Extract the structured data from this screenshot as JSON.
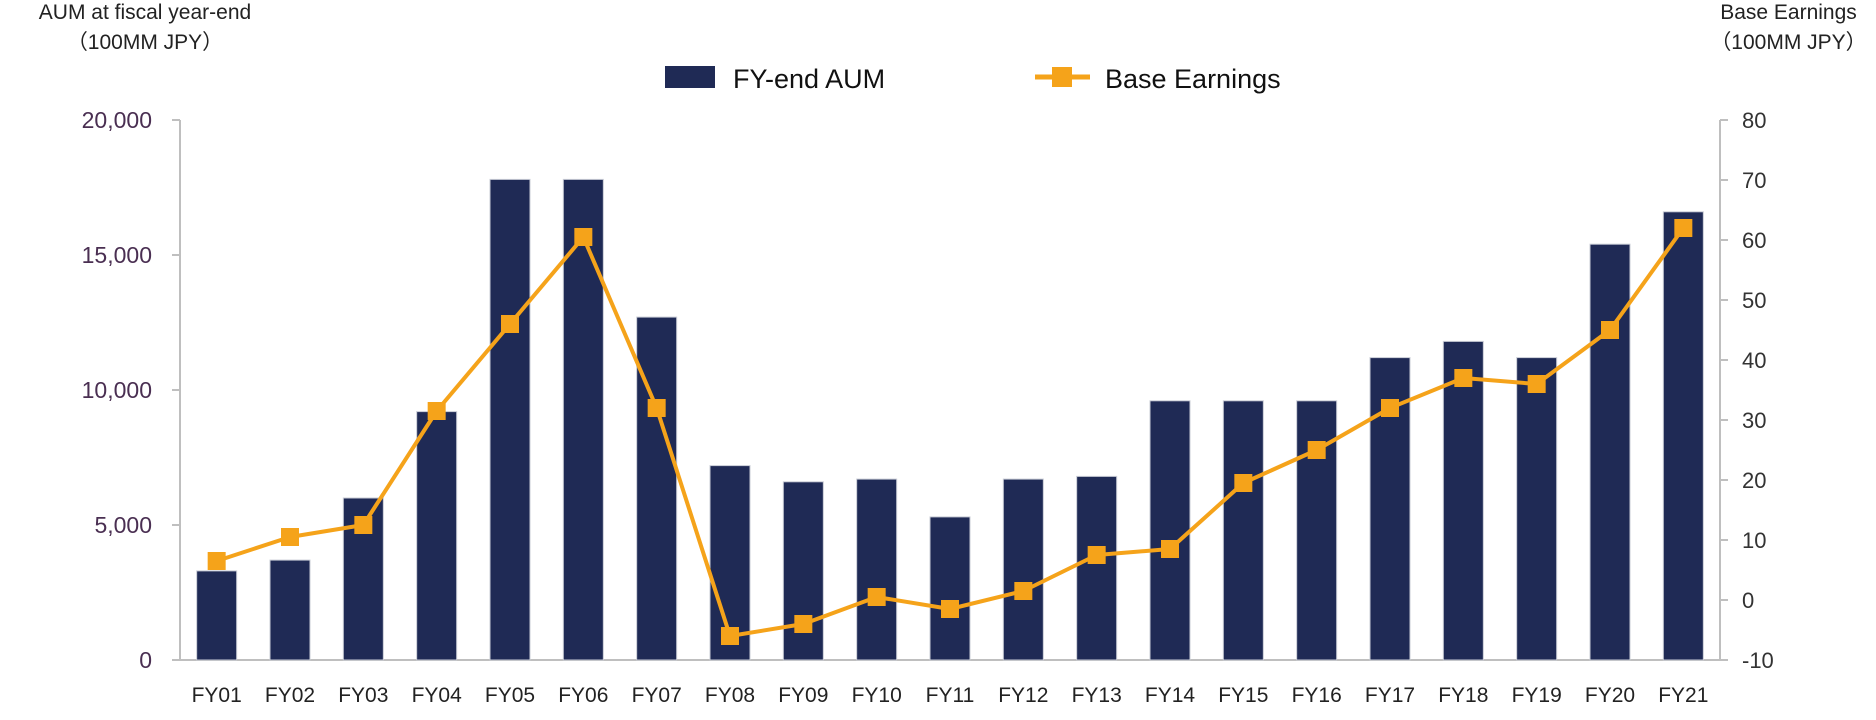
{
  "chart_data": {
    "type": "bar+line",
    "categories": [
      "FY01",
      "FY02",
      "FY03",
      "FY04",
      "FY05",
      "FY06",
      "FY07",
      "FY08",
      "FY09",
      "FY10",
      "FY11",
      "FY12",
      "FY13",
      "FY14",
      "FY15",
      "FY16",
      "FY17",
      "FY18",
      "FY19",
      "FY20",
      "FY21"
    ],
    "series": [
      {
        "name": "FY-end AUM",
        "type": "bar",
        "axis": "left",
        "color": "#1f2a55",
        "values": [
          3300,
          3700,
          6000,
          9200,
          17800,
          17800,
          12700,
          7200,
          6600,
          6700,
          5300,
          6700,
          6800,
          9600,
          9600,
          9600,
          11200,
          11800,
          11200,
          15400,
          16600
        ]
      },
      {
        "name": "Base Earnings",
        "type": "line",
        "axis": "right",
        "color": "#f5a31a",
        "values": [
          6.5,
          10.5,
          12.5,
          31.5,
          46,
          60.5,
          32,
          -6,
          -4,
          0.5,
          -1.5,
          1.5,
          7.5,
          8.5,
          19.5,
          25,
          32,
          37,
          36,
          45,
          62
        ]
      }
    ],
    "left_axis": {
      "title_line1": "AUM at fiscal year-end",
      "title_line2": "（100MM JPY）",
      "ylim": [
        0,
        20000
      ],
      "ticks": [
        "0",
        "5,000",
        "10,000",
        "15,000",
        "20,000"
      ]
    },
    "right_axis": {
      "title_line1": "Base Earnings",
      "title_line2": "（100MM JPY）",
      "ylim": [
        -10,
        80
      ],
      "ticks": [
        "-10",
        "0",
        "10",
        "20",
        "30",
        "40",
        "50",
        "60",
        "70",
        "80"
      ],
      "negative_tick_color": "#ff0000"
    },
    "legend_position": "top-center",
    "grid": false
  }
}
